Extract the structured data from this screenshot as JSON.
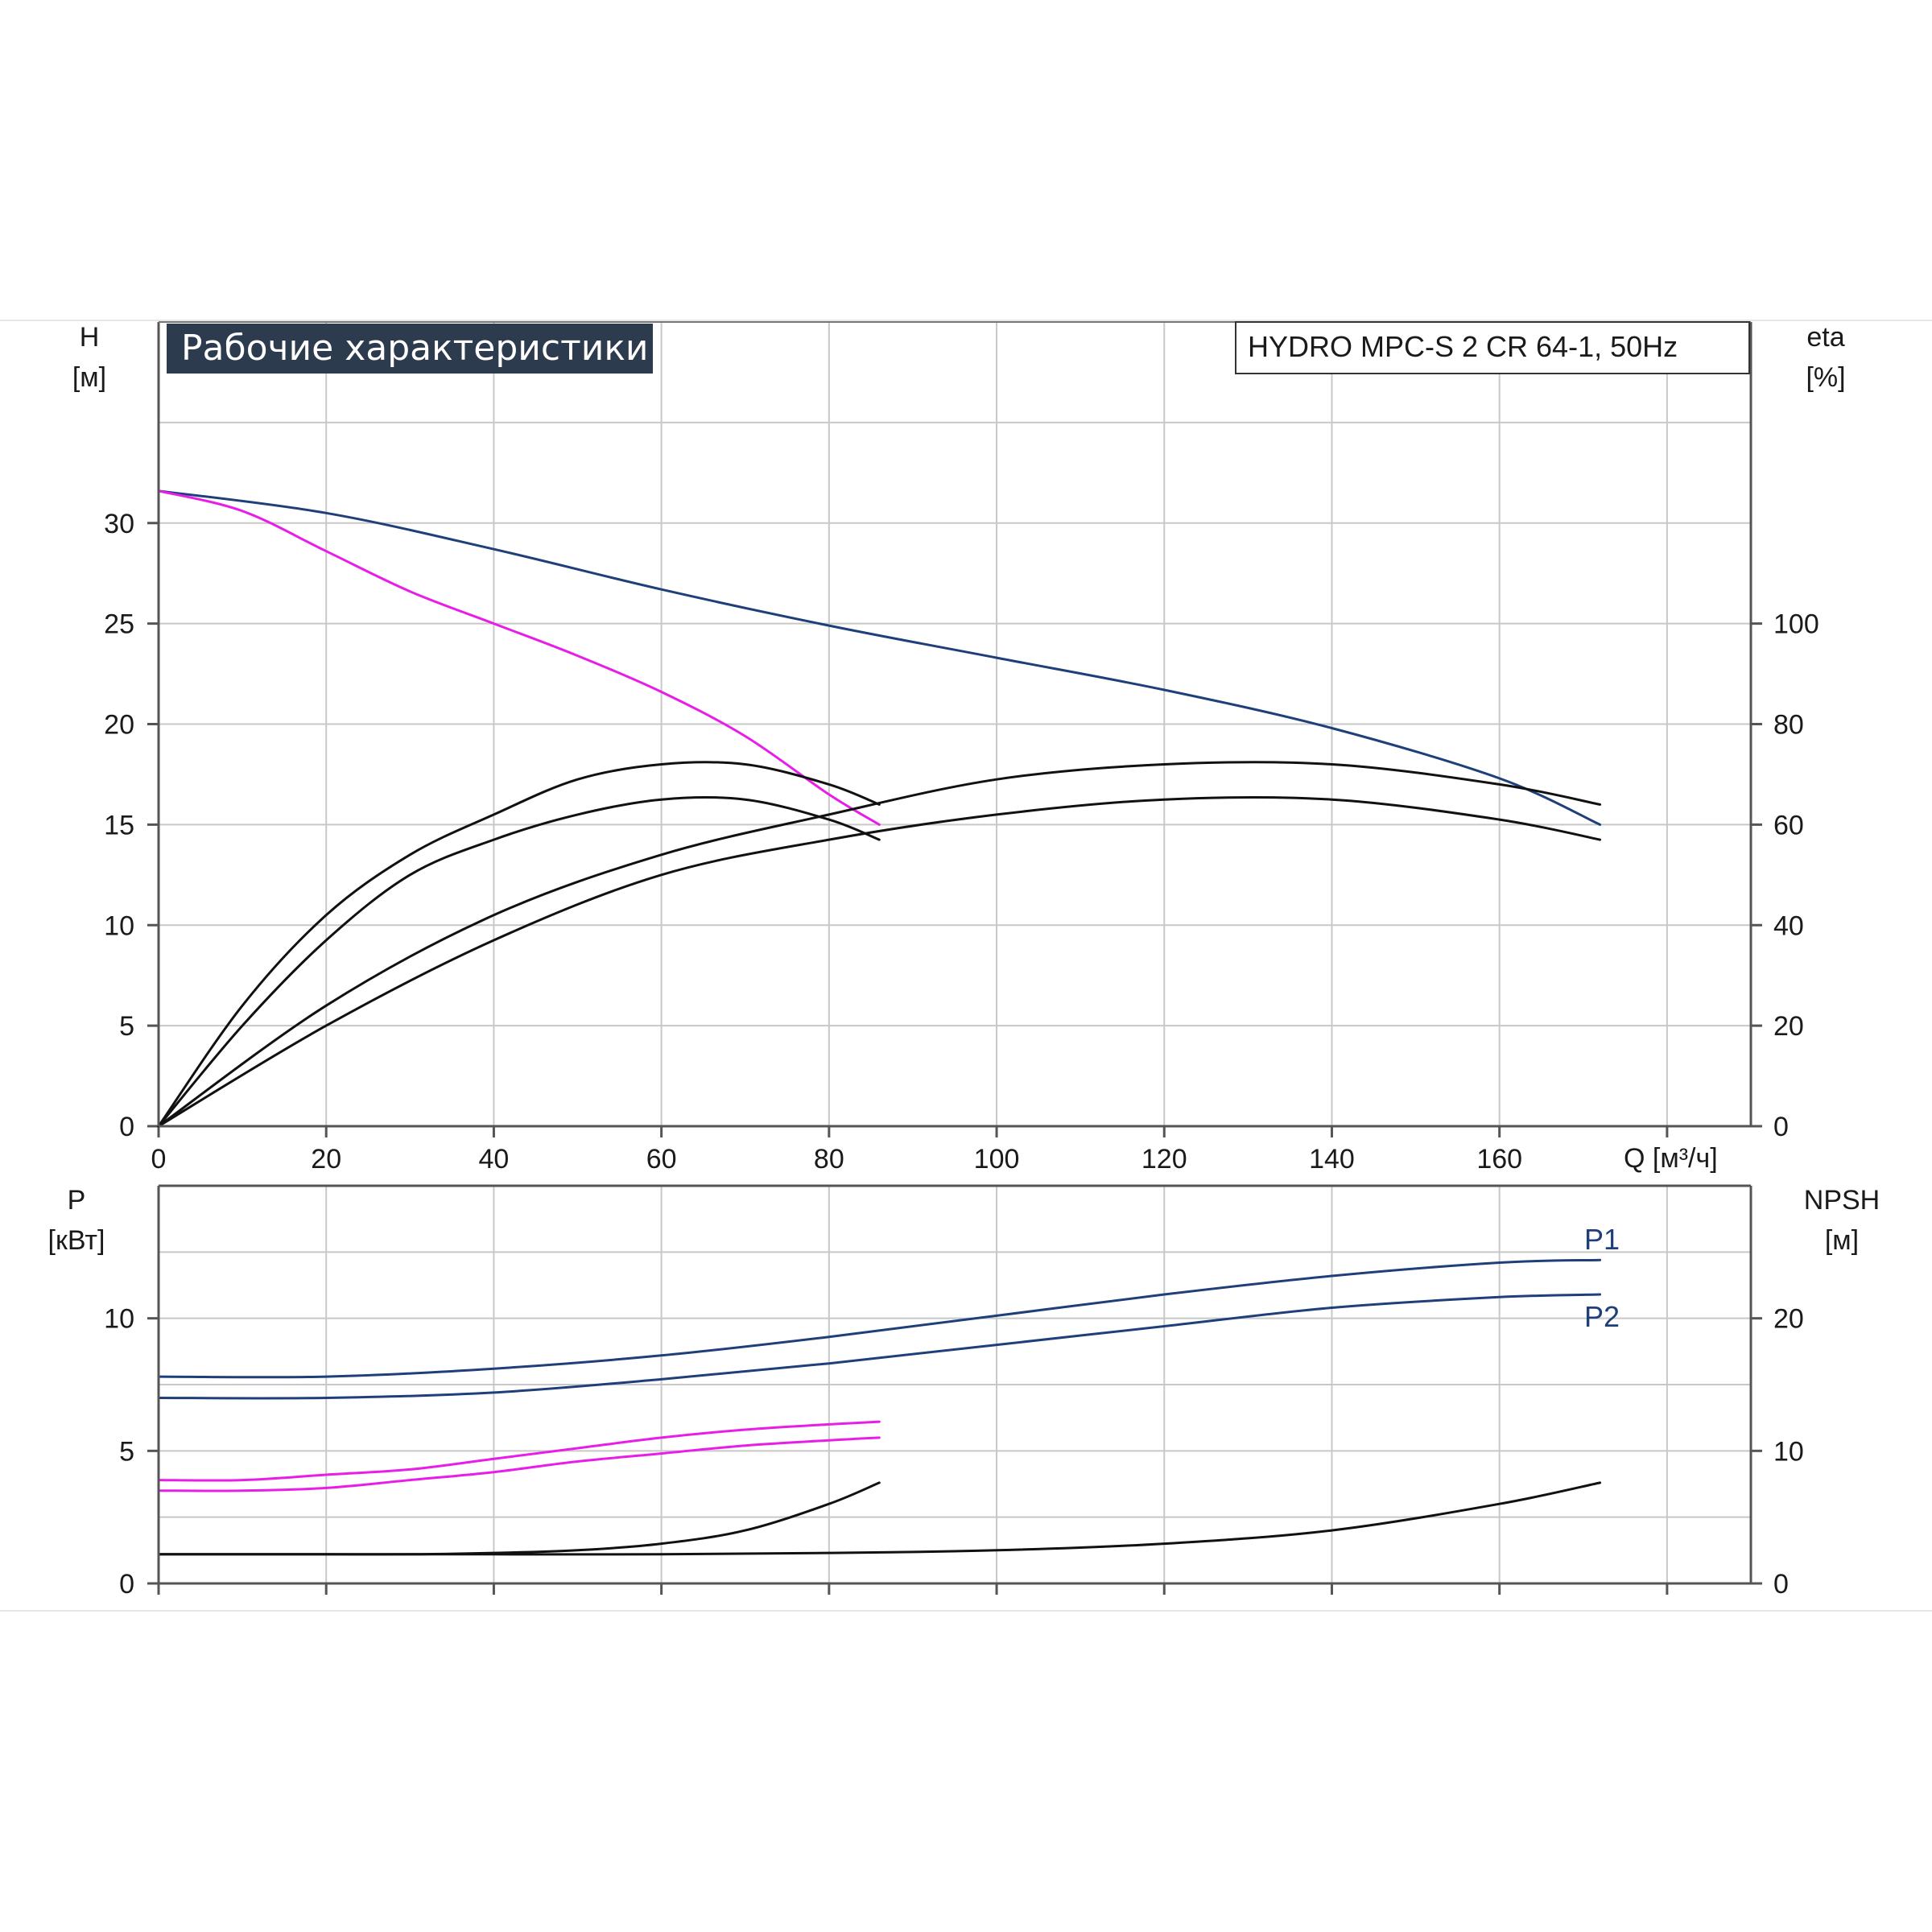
{
  "title": "Рабочие характеристики",
  "model": "HYDRO MPC-S 2 CR 64-1, 50Hz",
  "colors": {
    "blue": "#1f3f7a",
    "magenta": "#e81ee8",
    "black": "#111111",
    "grid": "#c8c8c8",
    "title_bg": "#2d3b4f"
  },
  "chart_data": [
    {
      "type": "line",
      "panel": "head-efficiency",
      "xlabel": "Q [м³/ч]",
      "x_ticks": [
        "0",
        "20",
        "40",
        "60",
        "80",
        "100",
        "120",
        "140",
        "160"
      ],
      "xlim": [
        0,
        190
      ],
      "left_axis": {
        "label": "H",
        "unit": "[м]",
        "ylim": [
          0,
          40
        ],
        "ticks": [
          "0",
          "5",
          "10",
          "15",
          "20",
          "25",
          "30"
        ]
      },
      "right_axis": {
        "label": "eta",
        "unit": "[%]",
        "ylim": [
          0,
          160
        ],
        "ticks": [
          "0",
          "20",
          "40",
          "60",
          "80",
          "100"
        ]
      },
      "grid": true,
      "series": [
        {
          "color": "blue",
          "axis": "left",
          "x": [
            0,
            20,
            40,
            60,
            80,
            100,
            120,
            140,
            160,
            172
          ],
          "y": [
            31.6,
            30.5,
            28.7,
            26.7,
            24.9,
            23.3,
            21.7,
            19.8,
            17.3,
            15.0
          ]
        },
        {
          "color": "magenta",
          "axis": "left",
          "x": [
            0,
            10,
            20,
            30,
            40,
            50,
            60,
            70,
            80,
            86
          ],
          "y": [
            31.6,
            30.6,
            28.6,
            26.6,
            25.0,
            23.4,
            21.6,
            19.4,
            16.5,
            15.0
          ]
        },
        {
          "color": "black",
          "axis": "right",
          "x": [
            0,
            10,
            20,
            30,
            40,
            50,
            60,
            70,
            80,
            86
          ],
          "y": [
            0,
            24,
            42,
            54,
            62,
            69,
            72,
            72,
            68,
            64
          ]
        },
        {
          "color": "black",
          "axis": "right",
          "x": [
            0,
            10,
            20,
            30,
            40,
            50,
            60,
            70,
            80,
            86
          ],
          "y": [
            0,
            20,
            37,
            50,
            57,
            62,
            65,
            65,
            61,
            57
          ]
        },
        {
          "color": "black",
          "axis": "right",
          "x": [
            0,
            20,
            40,
            60,
            80,
            100,
            120,
            140,
            160,
            172
          ],
          "y": [
            0,
            24,
            42,
            54,
            62,
            69,
            72,
            72,
            68,
            64
          ]
        },
        {
          "color": "black",
          "axis": "right",
          "x": [
            0,
            20,
            40,
            60,
            80,
            100,
            120,
            140,
            160,
            172
          ],
          "y": [
            0,
            20,
            37,
            50,
            57,
            62,
            65,
            65,
            61,
            57
          ]
        }
      ]
    },
    {
      "type": "line",
      "panel": "power-npsh",
      "xlim": [
        0,
        190
      ],
      "left_axis": {
        "label": "P",
        "unit": "[кВт]",
        "ylim": [
          0,
          15
        ],
        "ticks": [
          "0",
          "5",
          "10"
        ]
      },
      "right_axis": {
        "label": "NPSH",
        "unit": "[м]",
        "ylim": [
          0,
          30
        ],
        "ticks": [
          "0",
          "10",
          "20"
        ]
      },
      "grid": true,
      "series": [
        {
          "name": "P1",
          "color": "blue",
          "axis": "left",
          "x": [
            0,
            20,
            40,
            60,
            80,
            100,
            120,
            140,
            160,
            172
          ],
          "y": [
            7.8,
            7.8,
            8.1,
            8.6,
            9.3,
            10.1,
            10.9,
            11.6,
            12.1,
            12.2
          ]
        },
        {
          "name": "P2",
          "color": "blue",
          "axis": "left",
          "x": [
            0,
            20,
            40,
            60,
            80,
            100,
            120,
            140,
            160,
            172
          ],
          "y": [
            7.0,
            7.0,
            7.2,
            7.7,
            8.3,
            9.0,
            9.7,
            10.4,
            10.8,
            10.9
          ]
        },
        {
          "color": "magenta",
          "axis": "left",
          "x": [
            0,
            10,
            20,
            30,
            40,
            50,
            60,
            70,
            80,
            86
          ],
          "y": [
            3.9,
            3.9,
            4.1,
            4.3,
            4.7,
            5.1,
            5.5,
            5.8,
            6.0,
            6.1
          ]
        },
        {
          "color": "magenta",
          "axis": "left",
          "x": [
            0,
            10,
            20,
            30,
            40,
            50,
            60,
            70,
            80,
            86
          ],
          "y": [
            3.5,
            3.5,
            3.6,
            3.9,
            4.2,
            4.6,
            4.9,
            5.2,
            5.4,
            5.5
          ]
        },
        {
          "color": "black",
          "axis": "right",
          "x": [
            0,
            10,
            20,
            30,
            40,
            50,
            60,
            70,
            80,
            86
          ],
          "y": [
            2.2,
            2.2,
            2.2,
            2.2,
            2.3,
            2.5,
            3.0,
            4.0,
            6.0,
            7.6
          ]
        },
        {
          "color": "black",
          "axis": "right",
          "x": [
            0,
            20,
            40,
            60,
            80,
            100,
            120,
            140,
            160,
            172
          ],
          "y": [
            2.2,
            2.2,
            2.2,
            2.2,
            2.3,
            2.5,
            3.0,
            4.0,
            6.0,
            7.6
          ]
        }
      ]
    }
  ]
}
